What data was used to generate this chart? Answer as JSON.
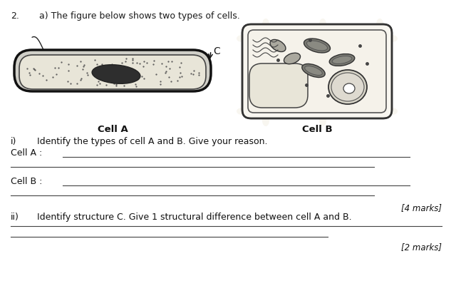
{
  "bg_color": "#ffffff",
  "question_num": "2.",
  "question_text": "a) The figure below shows two types of cells.",
  "cell_a_label": "Cell A",
  "cell_b_label": "Cell B",
  "c_label": "C",
  "part_i_roman": "i)",
  "part_i_text": "Identify the types of cell A and B. Give your reason.",
  "cell_a_line": "Cell A :",
  "cell_b_line": "Cell B :",
  "marks_4": "[4 marks]",
  "part_ii_roman": "ii)",
  "part_ii_text": "Identify structure C. Give 1 structural difference between cell A and B.",
  "marks_2": "[2 marks]"
}
